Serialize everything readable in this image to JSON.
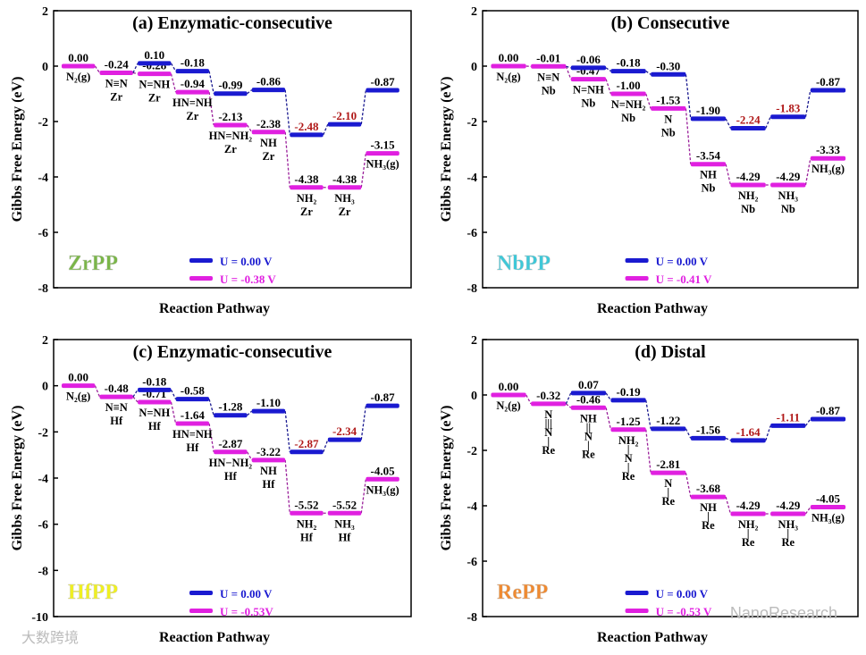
{
  "chart_data": [
    {
      "type": "line",
      "title": "(a) Enzymatic-consecutive",
      "badge": "ZrPP",
      "badge_color": "#7ab648",
      "xlabel": "Reaction Pathway",
      "ylabel": "Gibbs Free Energy (eV)",
      "ylim": [
        -8,
        2
      ],
      "yticks": [
        2,
        0,
        -2,
        -4,
        -6,
        -8
      ],
      "series": [
        {
          "name": "U = 0.00 V",
          "color": "#1a1ad0",
          "values": [
            0.0,
            -0.24,
            0.1,
            -0.18,
            -0.99,
            -0.86,
            -2.48,
            -2.1,
            -0.87
          ],
          "labels": [
            "0.00",
            "-0.24",
            "0.10",
            "-0.18",
            "-0.99",
            "-0.86",
            "-2.48",
            "-2.10",
            "-0.87"
          ],
          "highlight": [
            6,
            7
          ]
        },
        {
          "name": "U = -0.38 V",
          "color": "#e020e0",
          "values": [
            0.0,
            -0.24,
            -0.28,
            -0.94,
            -2.13,
            -2.38,
            -4.38,
            -4.38,
            -3.15
          ],
          "labels": [
            "0.00",
            "-0.24",
            "-0.28",
            "-0.94",
            "-2.13",
            "-2.38",
            "-4.38",
            "-4.38",
            "-3.15"
          ]
        }
      ],
      "species": [
        [
          "N₂(g)"
        ],
        [
          "N≡N",
          "Zr"
        ],
        [
          "N=NH",
          "Zr"
        ],
        [
          "HN=NH",
          "Zr"
        ],
        [
          "HN=NH₂",
          "Zr"
        ],
        [
          "NH",
          "Zr"
        ],
        [
          "NH₂",
          "Zr"
        ],
        [
          "NH₃",
          "Zr"
        ],
        [
          "NH₃(g)"
        ]
      ]
    },
    {
      "type": "line",
      "title": "(b) Consecutive",
      "badge": "NbPP",
      "badge_color": "#3ec8d8",
      "xlabel": "Reaction Pathway",
      "ylabel": "Gibbs Free Energy (eV)",
      "ylim": [
        -8,
        2
      ],
      "yticks": [
        2,
        0,
        -2,
        -4,
        -6,
        -8
      ],
      "series": [
        {
          "name": "U = 0.00 V",
          "color": "#1a1ad0",
          "values": [
            0.0,
            -0.01,
            -0.06,
            -0.18,
            -0.3,
            -1.9,
            -2.24,
            -1.83,
            -0.87
          ],
          "labels": [
            "0.00",
            "-0.01",
            "-0.06",
            "-0.18",
            "-0.30",
            "-1.90",
            "-2.24",
            "-1.83",
            "-0.87"
          ],
          "highlight": [
            6,
            7
          ]
        },
        {
          "name": "U = -0.41 V",
          "color": "#e020e0",
          "values": [
            0.0,
            -0.01,
            -0.47,
            -1.0,
            -1.53,
            -3.54,
            -4.29,
            -4.29,
            -3.33
          ],
          "labels": [
            "0.00",
            "-0.01",
            "-0.47",
            "-1.00",
            "-1.53",
            "-3.54",
            "-4.29",
            "-4.29",
            "-3.33"
          ]
        }
      ],
      "species": [
        [
          "N₂(g)"
        ],
        [
          "N≡N",
          "Nb"
        ],
        [
          "N=NH",
          "Nb"
        ],
        [
          "N=NH₂",
          "Nb"
        ],
        [
          "N",
          "Nb"
        ],
        [
          "NH",
          "Nb"
        ],
        [
          "NH₂",
          "Nb"
        ],
        [
          "NH₃",
          "Nb"
        ],
        [
          "NH₃(g)"
        ]
      ]
    },
    {
      "type": "line",
      "title": "(c) Enzymatic-consecutive",
      "badge": "HfPP",
      "badge_color": "#f0f020",
      "xlabel": "Reaction Pathway",
      "ylabel": "Gibbs Free Energy (eV)",
      "ylim": [
        -10,
        2
      ],
      "yticks": [
        2,
        0,
        -2,
        -4,
        -6,
        -8,
        -10
      ],
      "series": [
        {
          "name": "U = 0.00 V",
          "color": "#1a1ad0",
          "values": [
            0.0,
            -0.48,
            -0.18,
            -0.58,
            -1.28,
            -1.1,
            -2.87,
            -2.34,
            -0.87
          ],
          "labels": [
            "0.00",
            "-0.48",
            "-0.18",
            "-0.58",
            "-1.28",
            "-1.10",
            "-2.87",
            "-2.34",
            "-0.87"
          ],
          "highlight": [
            6,
            7
          ]
        },
        {
          "name": "U = -0.53V",
          "color": "#e020e0",
          "values": [
            0.0,
            -0.48,
            -0.71,
            -1.64,
            -2.87,
            -3.22,
            -5.52,
            -5.52,
            -4.05
          ],
          "labels": [
            "0.00",
            "-0.48",
            "-0.71",
            "-1.64",
            "-2.87",
            "-3.22",
            "-5.52",
            "-5.52",
            "-4.05"
          ]
        }
      ],
      "species": [
        [
          "N₂(g)"
        ],
        [
          "N≡N",
          "Hf"
        ],
        [
          "N=NH",
          "Hf"
        ],
        [
          "HN=NH",
          "Hf"
        ],
        [
          "HN−NH₂",
          "Hf"
        ],
        [
          "NH",
          "Hf"
        ],
        [
          "NH₂",
          "Hf"
        ],
        [
          "NH₃",
          "Hf"
        ],
        [
          "NH₃(g)"
        ]
      ]
    },
    {
      "type": "line",
      "title": "(d) Distal",
      "badge": "RePP",
      "badge_color": "#f08a30",
      "xlabel": "Reaction Pathway",
      "ylabel": "Gibbs Free Energy (eV)",
      "ylim": [
        -8,
        2
      ],
      "yticks": [
        2,
        0,
        -2,
        -4,
        -6,
        -8
      ],
      "series": [
        {
          "name": "U = 0.00 V",
          "color": "#1a1ad0",
          "values": [
            0.0,
            -0.32,
            0.07,
            -0.19,
            -1.22,
            -1.56,
            -1.64,
            -1.11,
            -0.87
          ],
          "labels": [
            "0.00",
            "-0.32",
            "0.07",
            "-0.19",
            "-1.22",
            "-1.56",
            "-1.64",
            "-1.11",
            "-0.87"
          ],
          "highlight": [
            6,
            7
          ]
        },
        {
          "name": "U = -0.53 V",
          "color": "#e020e0",
          "values": [
            0.0,
            -0.32,
            -0.46,
            -1.25,
            -2.81,
            -3.68,
            -4.29,
            -4.29,
            -4.05
          ],
          "labels": [
            "0.00",
            "-0.32",
            "-0.46",
            "-1.25",
            "-2.81",
            "-3.68",
            "-4.29",
            "-4.29",
            "-4.05"
          ]
        }
      ],
      "species": [
        [
          "N₂(g)"
        ],
        [
          "N",
          "|||",
          "N",
          "|",
          "Re"
        ],
        [
          "NH",
          "||",
          "N",
          "|",
          "Re"
        ],
        [
          "NH₂",
          "|",
          "N",
          "|",
          "Re"
        ],
        [
          "N",
          "|",
          "Re"
        ],
        [
          "NH",
          "|",
          "Re"
        ],
        [
          "NH₂",
          "|",
          "Re"
        ],
        [
          "NH₃",
          "|",
          "Re"
        ],
        [
          "NH₃(g)"
        ]
      ]
    }
  ],
  "watermarks": {
    "right": "NanoResearch",
    "left": "大数跨境"
  },
  "highlight_color": "#b01818"
}
